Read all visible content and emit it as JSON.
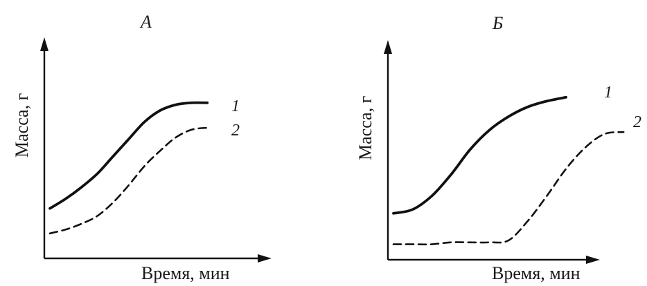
{
  "chart_data": [
    {
      "type": "line",
      "title": "А",
      "xlabel": "Время, мин",
      "ylabel": "Масса, г",
      "x": [
        0,
        0.1,
        0.2,
        0.3,
        0.4,
        0.5,
        0.6,
        0.7,
        0.8,
        0.9,
        1.0
      ],
      "xlim": [
        0,
        1.1
      ],
      "ylim": [
        0,
        1.0
      ],
      "grid": false,
      "series": [
        {
          "name": "1",
          "style": "solid",
          "color": "#111111",
          "values": [
            0.26,
            0.31,
            0.37,
            0.44,
            0.53,
            0.62,
            0.71,
            0.77,
            0.8,
            0.81,
            0.81
          ]
        },
        {
          "name": "2",
          "style": "dashed",
          "color": "#111111",
          "values": [
            0.13,
            0.15,
            0.18,
            0.22,
            0.29,
            0.38,
            0.48,
            0.56,
            0.63,
            0.67,
            0.68
          ]
        }
      ]
    },
    {
      "type": "line",
      "title": "Б",
      "xlabel": "Время, мин",
      "ylabel": "Масса, г",
      "x": [
        0,
        0.1,
        0.2,
        0.3,
        0.4,
        0.5,
        0.6,
        0.7,
        0.8,
        0.9,
        1.0,
        1.1,
        1.2
      ],
      "xlim": [
        0,
        1.25
      ],
      "ylim": [
        0,
        1.0
      ],
      "grid": false,
      "series": [
        {
          "name": "1",
          "style": "solid",
          "color": "#111111",
          "values": [
            0.24,
            0.26,
            0.33,
            0.44,
            0.57,
            0.67,
            0.74,
            0.79,
            0.82,
            0.84,
            null,
            null,
            null
          ]
        },
        {
          "name": "2",
          "style": "dashed",
          "color": "#111111",
          "values": [
            0.08,
            0.08,
            0.08,
            0.09,
            0.09,
            0.09,
            0.1,
            0.2,
            0.33,
            0.47,
            0.58,
            0.65,
            0.66
          ]
        }
      ]
    }
  ]
}
